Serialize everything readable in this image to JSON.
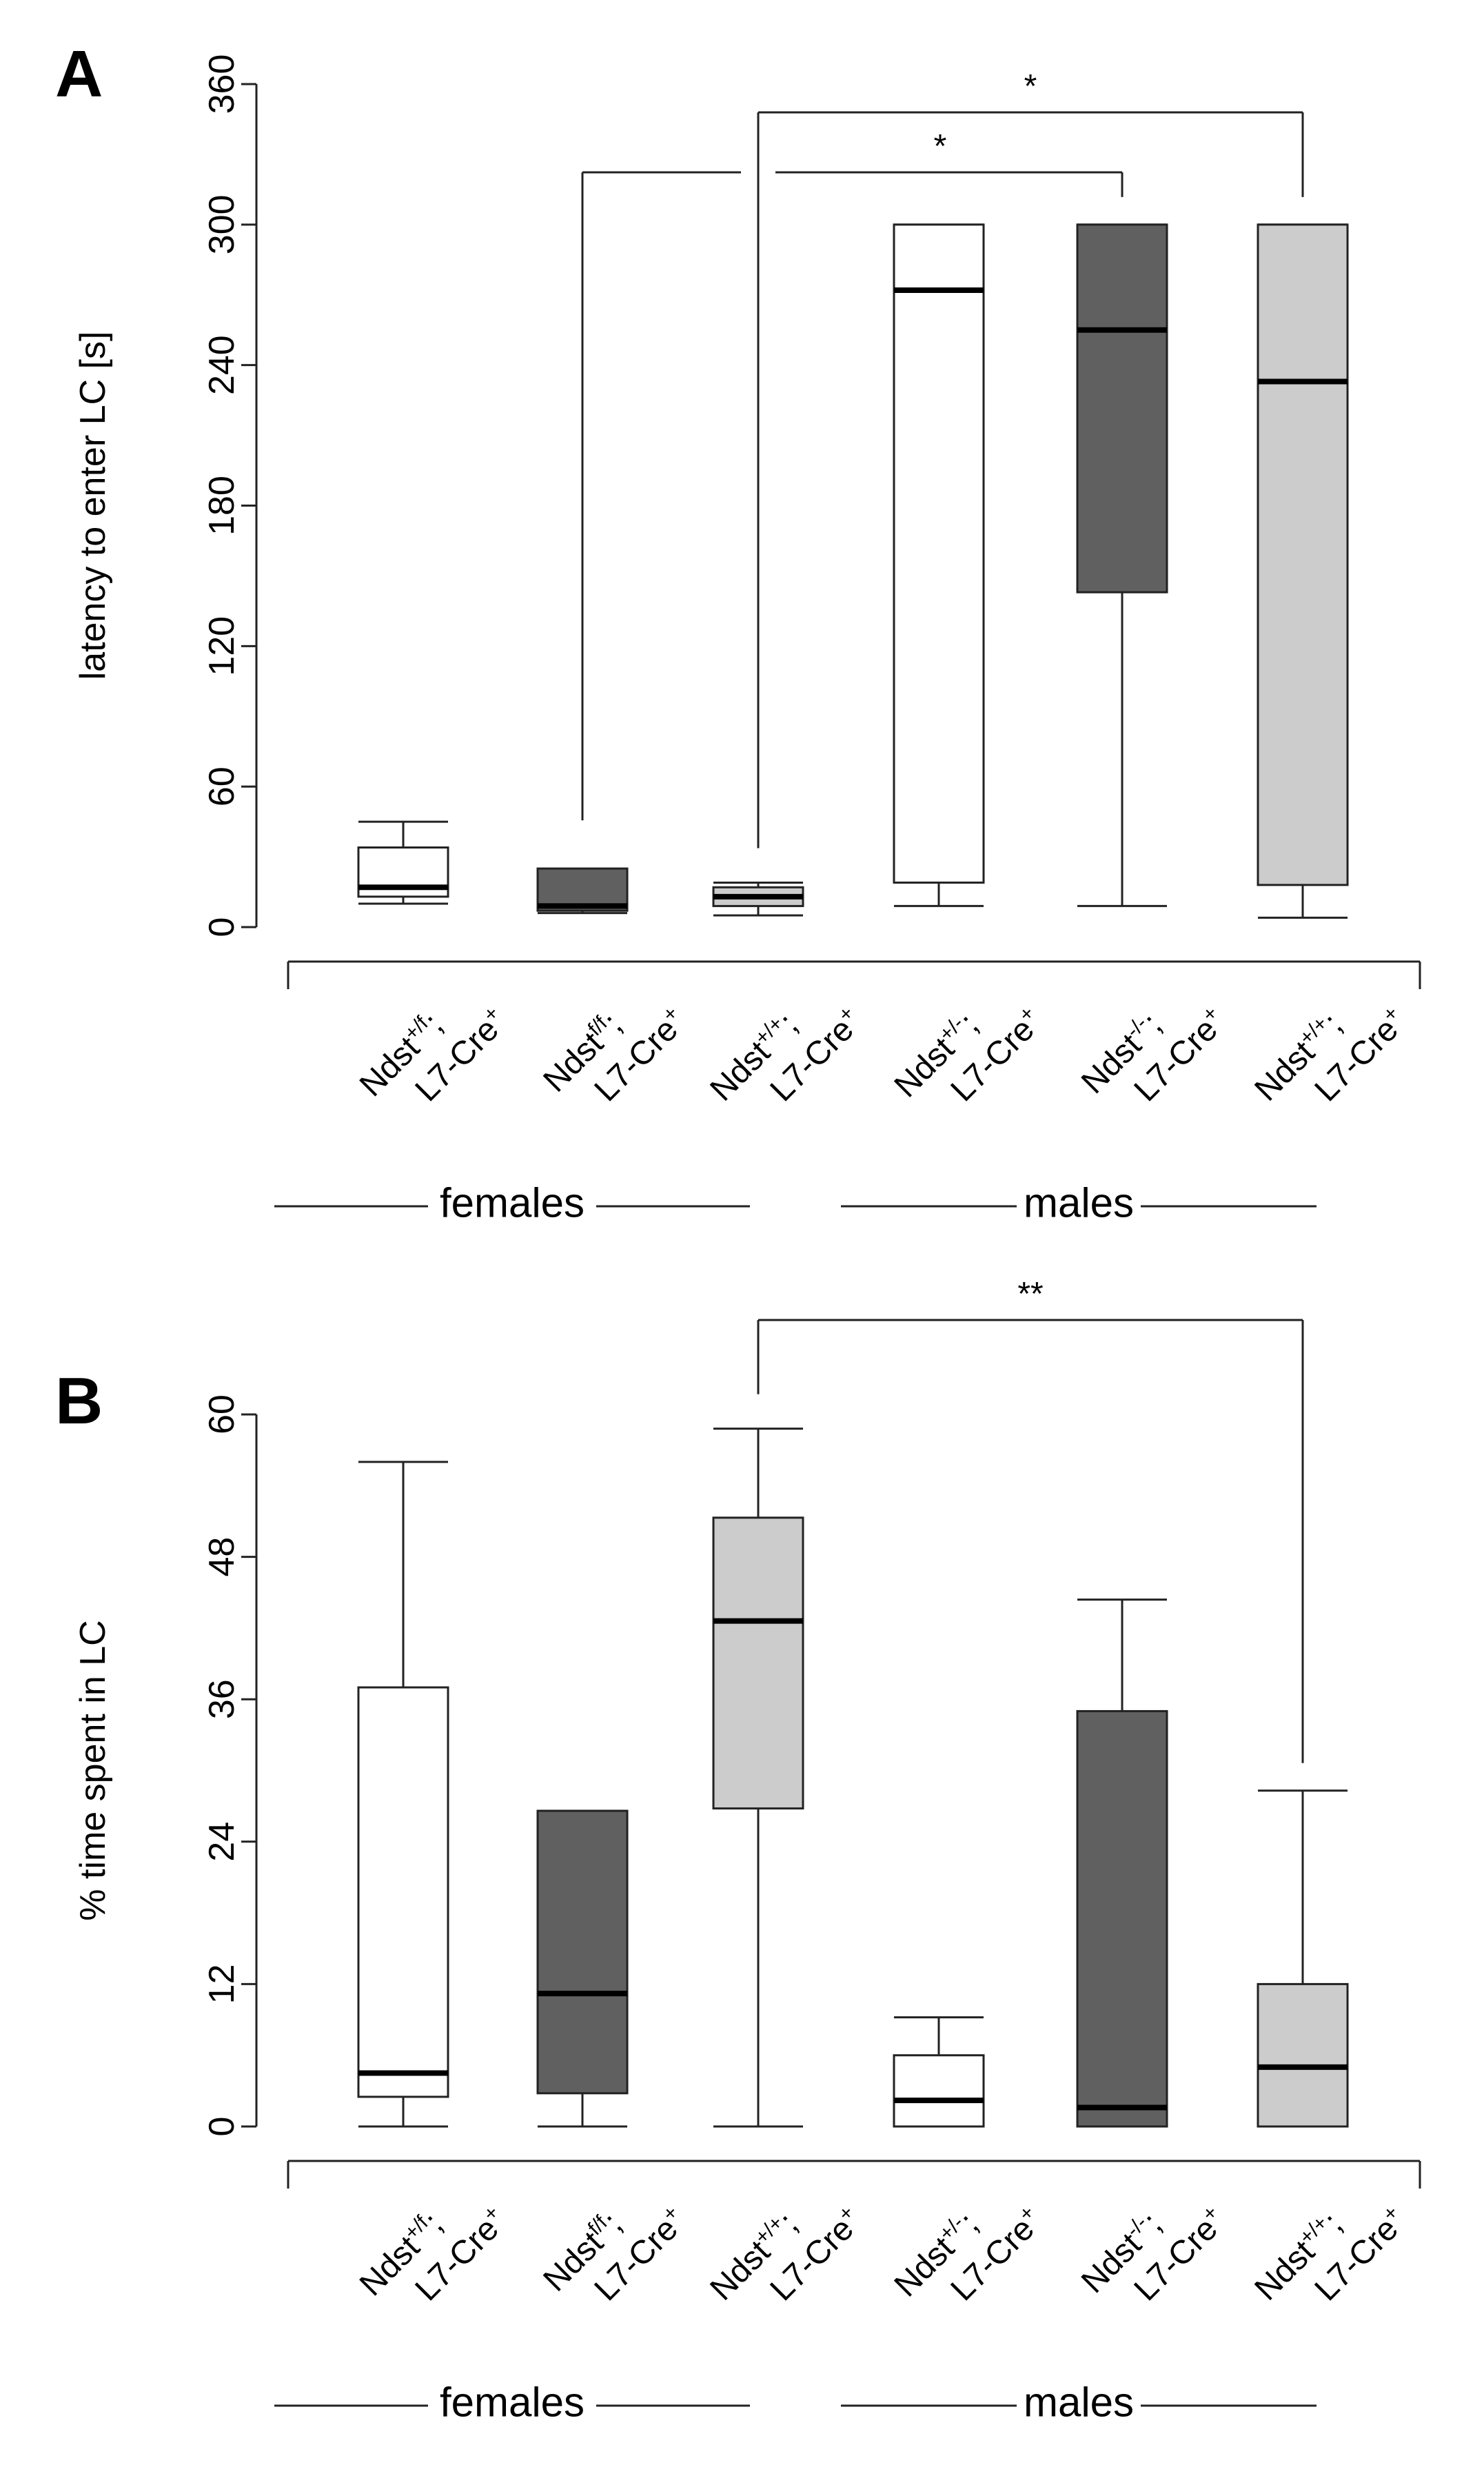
{
  "chart_data": [
    {
      "type": "box",
      "panel": "A",
      "ylabel": "latency to enter LC [s]",
      "ylim": [
        0,
        360
      ],
      "yticks": [
        0,
        60,
        120,
        180,
        240,
        300,
        360
      ],
      "groups": [
        {
          "label": "females",
          "categories": [
            0,
            1,
            2
          ]
        },
        {
          "label": "males",
          "categories": [
            3,
            4,
            5
          ]
        }
      ],
      "categories": [
        {
          "base": "Ndst",
          "sup": "+/f",
          "suffix": ";",
          "line2": "L7-Cre",
          "line2_sup": "+"
        },
        {
          "base": "Ndst",
          "sup": "f/f",
          "suffix": ";",
          "line2": "L7-Cre",
          "line2_sup": "+"
        },
        {
          "base": "Ndst",
          "sup": "+/+",
          "suffix": ";",
          "line2": "L7-Cre",
          "line2_sup": "+"
        },
        {
          "base": "Ndst",
          "sup": "+/-",
          "suffix": ";",
          "line2": "L7-Cre",
          "line2_sup": "+"
        },
        {
          "base": "Ndst",
          "sup": "-/-",
          "suffix": ";",
          "line2": "L7-Cre",
          "line2_sup": "+"
        },
        {
          "base": "Ndst",
          "sup": "+/+",
          "suffix": ";",
          "line2": "L7-Cre",
          "line2_sup": "+"
        }
      ],
      "boxes": [
        {
          "min": 10,
          "q1": 13,
          "median": 17,
          "q3": 34,
          "max": 45,
          "fill": "#ffffff"
        },
        {
          "min": 6,
          "q1": 7,
          "median": 9,
          "q3": 25,
          "max": 25,
          "fill": "#606060"
        },
        {
          "min": 5,
          "q1": 9,
          "median": 13,
          "q3": 17,
          "max": 19,
          "fill": "#cccccc"
        },
        {
          "min": 9,
          "q1": 19,
          "median": 272,
          "q3": 300,
          "max": 300,
          "fill": "#ffffff"
        },
        {
          "min": 9,
          "q1": 143,
          "median": 255,
          "q3": 300,
          "max": 300,
          "fill": "#606060"
        },
        {
          "min": 4,
          "q1": 18,
          "median": 233,
          "q3": 300,
          "max": 300,
          "fill": "#cccccc"
        }
      ],
      "significance": [
        {
          "from": 2,
          "to": 5,
          "label": "*"
        },
        {
          "from": 2,
          "to": 4,
          "label": "*"
        }
      ]
    },
    {
      "type": "box",
      "panel": "B",
      "ylabel": "% time spent in LC",
      "ylim": [
        0,
        60
      ],
      "yticks": [
        0,
        12,
        24,
        36,
        48,
        60
      ],
      "groups": [
        {
          "label": "females",
          "categories": [
            0,
            1,
            2
          ]
        },
        {
          "label": "males",
          "categories": [
            3,
            4,
            5
          ]
        }
      ],
      "categories": [
        {
          "base": "Ndst",
          "sup": "+/f",
          "suffix": ";",
          "line2": "L7-Cre",
          "line2_sup": "+"
        },
        {
          "base": "Ndst",
          "sup": "f/f",
          "suffix": ";",
          "line2": "L7-Cre",
          "line2_sup": "+"
        },
        {
          "base": "Ndst",
          "sup": "+/+",
          "suffix": ";",
          "line2": "L7-Cre",
          "line2_sup": "+"
        },
        {
          "base": "Ndst",
          "sup": "+/-",
          "suffix": ";",
          "line2": "L7-Cre",
          "line2_sup": "+"
        },
        {
          "base": "Ndst",
          "sup": "-/-",
          "suffix": ";",
          "line2": "L7-Cre",
          "line2_sup": "+"
        },
        {
          "base": "Ndst",
          "sup": "+/+",
          "suffix": ";",
          "line2": "L7-Cre",
          "line2_sup": "+"
        }
      ],
      "boxes": [
        {
          "min": 0,
          "q1": 2.5,
          "median": 4.5,
          "q3": 37,
          "max": 56,
          "fill": "#ffffff"
        },
        {
          "min": 0,
          "q1": 2.8,
          "median": 11.2,
          "q3": 26.6,
          "max": 26.6,
          "fill": "#606060"
        },
        {
          "min": 0,
          "q1": 26.8,
          "median": 42.6,
          "q3": 51.3,
          "max": 58.8,
          "fill": "#cccccc"
        },
        {
          "min": 0,
          "q1": 0,
          "median": 2.2,
          "q3": 6,
          "max": 9.2,
          "fill": "#ffffff"
        },
        {
          "min": 0,
          "q1": 0,
          "median": 1.6,
          "q3": 35,
          "max": 44.4,
          "fill": "#606060"
        },
        {
          "min": 0,
          "q1": 0,
          "median": 5,
          "q3": 12,
          "max": 28.3,
          "fill": "#cccccc"
        }
      ],
      "significance": [
        {
          "from": 2,
          "to": 5,
          "label": "**"
        }
      ]
    }
  ]
}
